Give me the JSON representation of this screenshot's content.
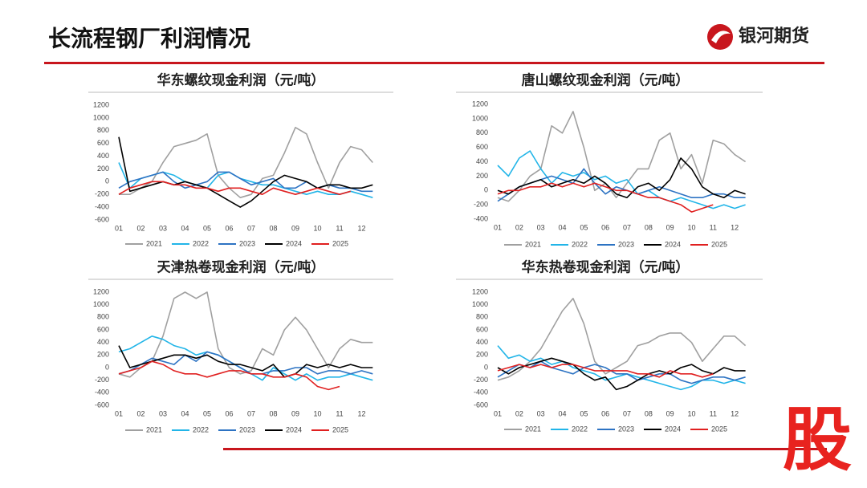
{
  "header": {
    "title": "长流程钢厂利润情况",
    "logo": "银河期货",
    "watermark": "股"
  },
  "chart_data": [
    {
      "type": "line",
      "title": "华东螺纹现金利润（元/吨）",
      "x": [
        1,
        1.5,
        2,
        2.5,
        3,
        3.5,
        4,
        4.5,
        5,
        5.5,
        6,
        6.5,
        7,
        7.5,
        8,
        8.5,
        9,
        9.5,
        10,
        10.5,
        11,
        11.5,
        12,
        12.5
      ],
      "xlim": [
        1,
        13
      ],
      "xticks": [
        {
          "value": 1,
          "label": "01"
        },
        {
          "value": 2,
          "label": "02"
        },
        {
          "value": 3,
          "label": "03"
        },
        {
          "value": 4,
          "label": "04"
        },
        {
          "value": 5,
          "label": "05"
        },
        {
          "value": 6,
          "label": "06"
        },
        {
          "value": 7,
          "label": "07"
        },
        {
          "value": 8,
          "label": "08"
        },
        {
          "value": 9,
          "label": "09"
        },
        {
          "value": 10,
          "label": "10"
        },
        {
          "value": 11,
          "label": "11"
        },
        {
          "value": 12,
          "label": "12"
        }
      ],
      "ylim": [
        -600,
        1200
      ],
      "yticks": [
        -600,
        -400,
        -200,
        0,
        200,
        400,
        600,
        800,
        1000,
        1200
      ],
      "series": [
        {
          "name": "2021",
          "color": "#a0a0a0",
          "values": [
            -200,
            -200,
            -100,
            0,
            300,
            550,
            600,
            650,
            750,
            100,
            -100,
            -250,
            -200,
            50,
            100,
            450,
            850,
            750,
            300,
            -100,
            300,
            550,
            500,
            300
          ]
        },
        {
          "name": "2022",
          "color": "#22b5e8",
          "values": [
            300,
            -100,
            50,
            100,
            150,
            100,
            0,
            -50,
            -100,
            100,
            150,
            50,
            0,
            -50,
            -50,
            -100,
            -150,
            -200,
            -150,
            -200,
            -200,
            -150,
            -200,
            -250
          ]
        },
        {
          "name": "2023",
          "color": "#2d73c3",
          "values": [
            -100,
            0,
            50,
            100,
            150,
            0,
            -100,
            -50,
            0,
            150,
            150,
            50,
            -50,
            0,
            50,
            -100,
            -100,
            0,
            -100,
            -50,
            -100,
            -100,
            -150,
            -150
          ]
        },
        {
          "name": "2024",
          "color": "#000000",
          "values": [
            700,
            -150,
            -100,
            -50,
            0,
            -50,
            0,
            -50,
            -100,
            -200,
            -300,
            -400,
            -300,
            -150,
            0,
            100,
            50,
            0,
            -100,
            -50,
            -50,
            -100,
            -100,
            -50
          ]
        },
        {
          "name": "2025",
          "color": "#e02020",
          "values": [
            -200,
            -100,
            -50,
            0,
            0,
            -50,
            -50,
            -100,
            -100,
            -150,
            -100,
            -100,
            -150,
            -200,
            -100,
            -150,
            -200,
            -150,
            -100,
            -150,
            -200,
            -150,
            null,
            null
          ]
        }
      ]
    },
    {
      "type": "line",
      "title": "唐山螺纹现金利润（元/吨）",
      "x": [
        1,
        1.5,
        2,
        2.5,
        3,
        3.5,
        4,
        4.5,
        5,
        5.5,
        6,
        6.5,
        7,
        7.5,
        8,
        8.5,
        9,
        9.5,
        10,
        10.5,
        11,
        11.5,
        12,
        12.5
      ],
      "xlim": [
        1,
        13
      ],
      "xticks": [
        {
          "value": 1,
          "label": "01"
        },
        {
          "value": 2,
          "label": "02"
        },
        {
          "value": 3,
          "label": "03"
        },
        {
          "value": 4,
          "label": "04"
        },
        {
          "value": 5,
          "label": "05"
        },
        {
          "value": 6,
          "label": "06"
        },
        {
          "value": 7,
          "label": "07"
        },
        {
          "value": 8,
          "label": "08"
        },
        {
          "value": 9,
          "label": "09"
        },
        {
          "value": 10,
          "label": "10"
        },
        {
          "value": 11,
          "label": "11"
        },
        {
          "value": 12,
          "label": "12"
        }
      ],
      "ylim": [
        -400,
        1200
      ],
      "yticks": [
        -400,
        -200,
        0,
        200,
        400,
        600,
        800,
        1000,
        1200
      ],
      "series": [
        {
          "name": "2021",
          "color": "#a0a0a0",
          "values": [
            -100,
            -150,
            0,
            200,
            300,
            900,
            800,
            1100,
            600,
            0,
            100,
            -100,
            100,
            300,
            300,
            700,
            800,
            300,
            500,
            100,
            700,
            650,
            500,
            400
          ]
        },
        {
          "name": "2022",
          "color": "#22b5e8",
          "values": [
            350,
            200,
            450,
            550,
            300,
            100,
            250,
            200,
            250,
            150,
            200,
            100,
            150,
            -50,
            0,
            -100,
            -150,
            -100,
            -150,
            -200,
            -250,
            -200,
            -250,
            -200
          ]
        },
        {
          "name": "2023",
          "color": "#2d73c3",
          "values": [
            -150,
            -50,
            50,
            100,
            150,
            200,
            150,
            100,
            300,
            100,
            -50,
            50,
            0,
            -50,
            0,
            50,
            0,
            -50,
            -100,
            -100,
            -50,
            -50,
            -100,
            -100
          ]
        },
        {
          "name": "2024",
          "color": "#000000",
          "values": [
            0,
            -50,
            50,
            100,
            150,
            50,
            100,
            150,
            100,
            200,
            100,
            -50,
            -100,
            50,
            100,
            0,
            150,
            450,
            300,
            50,
            -50,
            -100,
            0,
            -50
          ]
        },
        {
          "name": "2025",
          "color": "#e02020",
          "values": [
            -50,
            0,
            0,
            50,
            50,
            100,
            50,
            100,
            50,
            100,
            50,
            0,
            0,
            -50,
            -100,
            -100,
            -150,
            -200,
            -300,
            -250,
            -200,
            null,
            null,
            null
          ]
        }
      ]
    },
    {
      "type": "line",
      "title": "天津热卷现金利润（元/吨）",
      "x": [
        1,
        1.5,
        2,
        2.5,
        3,
        3.5,
        4,
        4.5,
        5,
        5.5,
        6,
        6.5,
        7,
        7.5,
        8,
        8.5,
        9,
        9.5,
        10,
        10.5,
        11,
        11.5,
        12,
        12.5
      ],
      "xlim": [
        1,
        13
      ],
      "xticks": [
        {
          "value": 1,
          "label": "01"
        },
        {
          "value": 2,
          "label": "02"
        },
        {
          "value": 3,
          "label": "03"
        },
        {
          "value": 4,
          "label": "04"
        },
        {
          "value": 5,
          "label": "05"
        },
        {
          "value": 6,
          "label": "06"
        },
        {
          "value": 7,
          "label": "07"
        },
        {
          "value": 8,
          "label": "08"
        },
        {
          "value": 9,
          "label": "09"
        },
        {
          "value": 10,
          "label": "10"
        },
        {
          "value": 11,
          "label": "11"
        },
        {
          "value": 12,
          "label": "12"
        }
      ],
      "ylim": [
        -600,
        1200
      ],
      "yticks": [
        -600,
        -400,
        -200,
        0,
        200,
        400,
        600,
        800,
        1000,
        1200
      ],
      "series": [
        {
          "name": "2021",
          "color": "#a0a0a0",
          "values": [
            -100,
            -150,
            0,
            100,
            500,
            1100,
            1200,
            1100,
            1200,
            300,
            0,
            -100,
            -50,
            300,
            200,
            600,
            800,
            600,
            300,
            0,
            300,
            450,
            400,
            400
          ]
        },
        {
          "name": "2022",
          "color": "#22b5e8",
          "values": [
            250,
            300,
            400,
            500,
            450,
            350,
            300,
            200,
            250,
            200,
            100,
            0,
            -100,
            -200,
            0,
            -100,
            -200,
            -100,
            -200,
            -150,
            -150,
            -100,
            -150,
            -200
          ]
        },
        {
          "name": "2023",
          "color": "#2d73c3",
          "values": [
            -100,
            -50,
            50,
            150,
            100,
            50,
            200,
            100,
            250,
            200,
            100,
            0,
            -100,
            -100,
            -50,
            -50,
            0,
            0,
            -100,
            -50,
            -50,
            -100,
            -50,
            -100
          ]
        },
        {
          "name": "2024",
          "color": "#000000",
          "values": [
            350,
            0,
            50,
            100,
            150,
            200,
            200,
            150,
            200,
            100,
            50,
            50,
            0,
            -50,
            50,
            -150,
            -100,
            50,
            0,
            50,
            0,
            50,
            0,
            0
          ]
        },
        {
          "name": "2025",
          "color": "#e02020",
          "values": [
            -100,
            -50,
            0,
            100,
            50,
            -50,
            -100,
            -100,
            -150,
            -100,
            -50,
            -50,
            -100,
            -100,
            -150,
            -150,
            -100,
            -150,
            -300,
            -350,
            -300,
            null,
            null,
            null
          ]
        }
      ]
    },
    {
      "type": "line",
      "title": "华东热卷现金利润（元/吨）",
      "x": [
        1,
        1.5,
        2,
        2.5,
        3,
        3.5,
        4,
        4.5,
        5,
        5.5,
        6,
        6.5,
        7,
        7.5,
        8,
        8.5,
        9,
        9.5,
        10,
        10.5,
        11,
        11.5,
        12,
        12.5
      ],
      "xlim": [
        1,
        13
      ],
      "xticks": [
        {
          "value": 1,
          "label": "01"
        },
        {
          "value": 2,
          "label": "02"
        },
        {
          "value": 3,
          "label": "03"
        },
        {
          "value": 4,
          "label": "04"
        },
        {
          "value": 5,
          "label": "05"
        },
        {
          "value": 6,
          "label": "06"
        },
        {
          "value": 7,
          "label": "07"
        },
        {
          "value": 8,
          "label": "08"
        },
        {
          "value": 9,
          "label": "09"
        },
        {
          "value": 10,
          "label": "10"
        },
        {
          "value": 11,
          "label": "11"
        },
        {
          "value": 12,
          "label": "12"
        }
      ],
      "ylim": [
        -600,
        1200
      ],
      "yticks": [
        -600,
        -400,
        -200,
        0,
        200,
        400,
        600,
        800,
        1000,
        1200
      ],
      "series": [
        {
          "name": "2021",
          "color": "#a0a0a0",
          "values": [
            -200,
            -150,
            -50,
            100,
            300,
            600,
            900,
            1100,
            700,
            100,
            -100,
            0,
            100,
            350,
            400,
            500,
            550,
            550,
            400,
            100,
            300,
            500,
            500,
            350
          ]
        },
        {
          "name": "2022",
          "color": "#22b5e8",
          "values": [
            350,
            150,
            200,
            100,
            150,
            50,
            100,
            0,
            -50,
            -100,
            -200,
            -150,
            -100,
            -150,
            -200,
            -250,
            -300,
            -350,
            -300,
            -200,
            -200,
            -250,
            -200,
            -250
          ]
        },
        {
          "name": "2023",
          "color": "#2d73c3",
          "values": [
            -150,
            -50,
            50,
            0,
            100,
            0,
            -50,
            -100,
            0,
            50,
            0,
            -100,
            -100,
            -200,
            -150,
            -100,
            -100,
            -200,
            -250,
            -200,
            -150,
            -150,
            -200,
            -150
          ]
        },
        {
          "name": "2024",
          "color": "#000000",
          "values": [
            0,
            -100,
            0,
            50,
            100,
            150,
            100,
            50,
            -100,
            -200,
            -150,
            -350,
            -300,
            -200,
            -100,
            -50,
            -100,
            0,
            50,
            -50,
            -100,
            0,
            -50,
            -50
          ]
        },
        {
          "name": "2025",
          "color": "#e02020",
          "values": [
            -50,
            0,
            50,
            0,
            50,
            0,
            50,
            50,
            0,
            -50,
            -50,
            -50,
            -50,
            -100,
            -100,
            -150,
            -50,
            -100,
            -100,
            -150,
            -100,
            null,
            null,
            null
          ]
        }
      ]
    }
  ]
}
